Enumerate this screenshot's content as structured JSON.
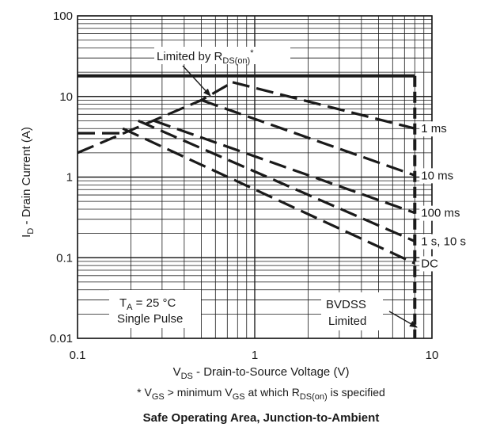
{
  "chart_data": {
    "type": "line",
    "x_scale": "log",
    "y_scale": "log",
    "xlim": [
      0.1,
      10
    ],
    "ylim": [
      0.01,
      100
    ],
    "x_ticks": [
      "0.1",
      "1",
      "10"
    ],
    "y_ticks": [
      "0.01",
      "0.1",
      "1",
      "10",
      "100"
    ],
    "grid": true,
    "xlabel": {
      "main": "V",
      "sub": "DS",
      "rest": " - Drain-to-Source Voltage (V)"
    },
    "ylabel": {
      "main": "I",
      "sub": "D",
      "rest": " - Drain Current (A)"
    },
    "footnote": {
      "p1": "* V",
      "s1": "GS",
      "p2": " > minimum V",
      "s2": "GS",
      "p3": " at which R",
      "s3": "DS(on)",
      "p4": " is specified"
    },
    "caption": "Safe Operating Area, Junction-to-Ambient",
    "annotations": {
      "rdson": {
        "main": "Limited by R",
        "sub": "DS(on)",
        "rest": "*"
      },
      "ta": {
        "main": "T",
        "sub": "A",
        "rest": " = 25 °C"
      },
      "pulse": "Single Pulse",
      "bvdss_1": "BVDSS",
      "bvdss_2": "Limited"
    },
    "current_limit_A": 18,
    "voltage_limit_V": 8,
    "series": [
      {
        "name": "1 ms",
        "points": [
          [
            0.75,
            15
          ],
          [
            8,
            4
          ]
        ]
      },
      {
        "name": "10 ms",
        "points": [
          [
            0.5,
            9
          ],
          [
            8,
            1.05
          ]
        ]
      },
      {
        "name": "100 ms",
        "points": [
          [
            0.27,
            5
          ],
          [
            8,
            0.36
          ]
        ]
      },
      {
        "name": "1 s, 10 s",
        "points": [
          [
            0.22,
            5
          ],
          [
            8,
            0.16
          ]
        ]
      },
      {
        "name": "DC",
        "points": [
          [
            0.18,
            4
          ],
          [
            8,
            0.085
          ]
        ]
      },
      {
        "name": "",
        "points": [
          [
            0.1,
            3.5
          ],
          [
            0.18,
            3.5
          ]
        ]
      },
      {
        "name": "",
        "points": [
          [
            0.1,
            2
          ],
          [
            0.5,
            9
          ],
          [
            0.75,
            15
          ]
        ]
      }
    ]
  }
}
